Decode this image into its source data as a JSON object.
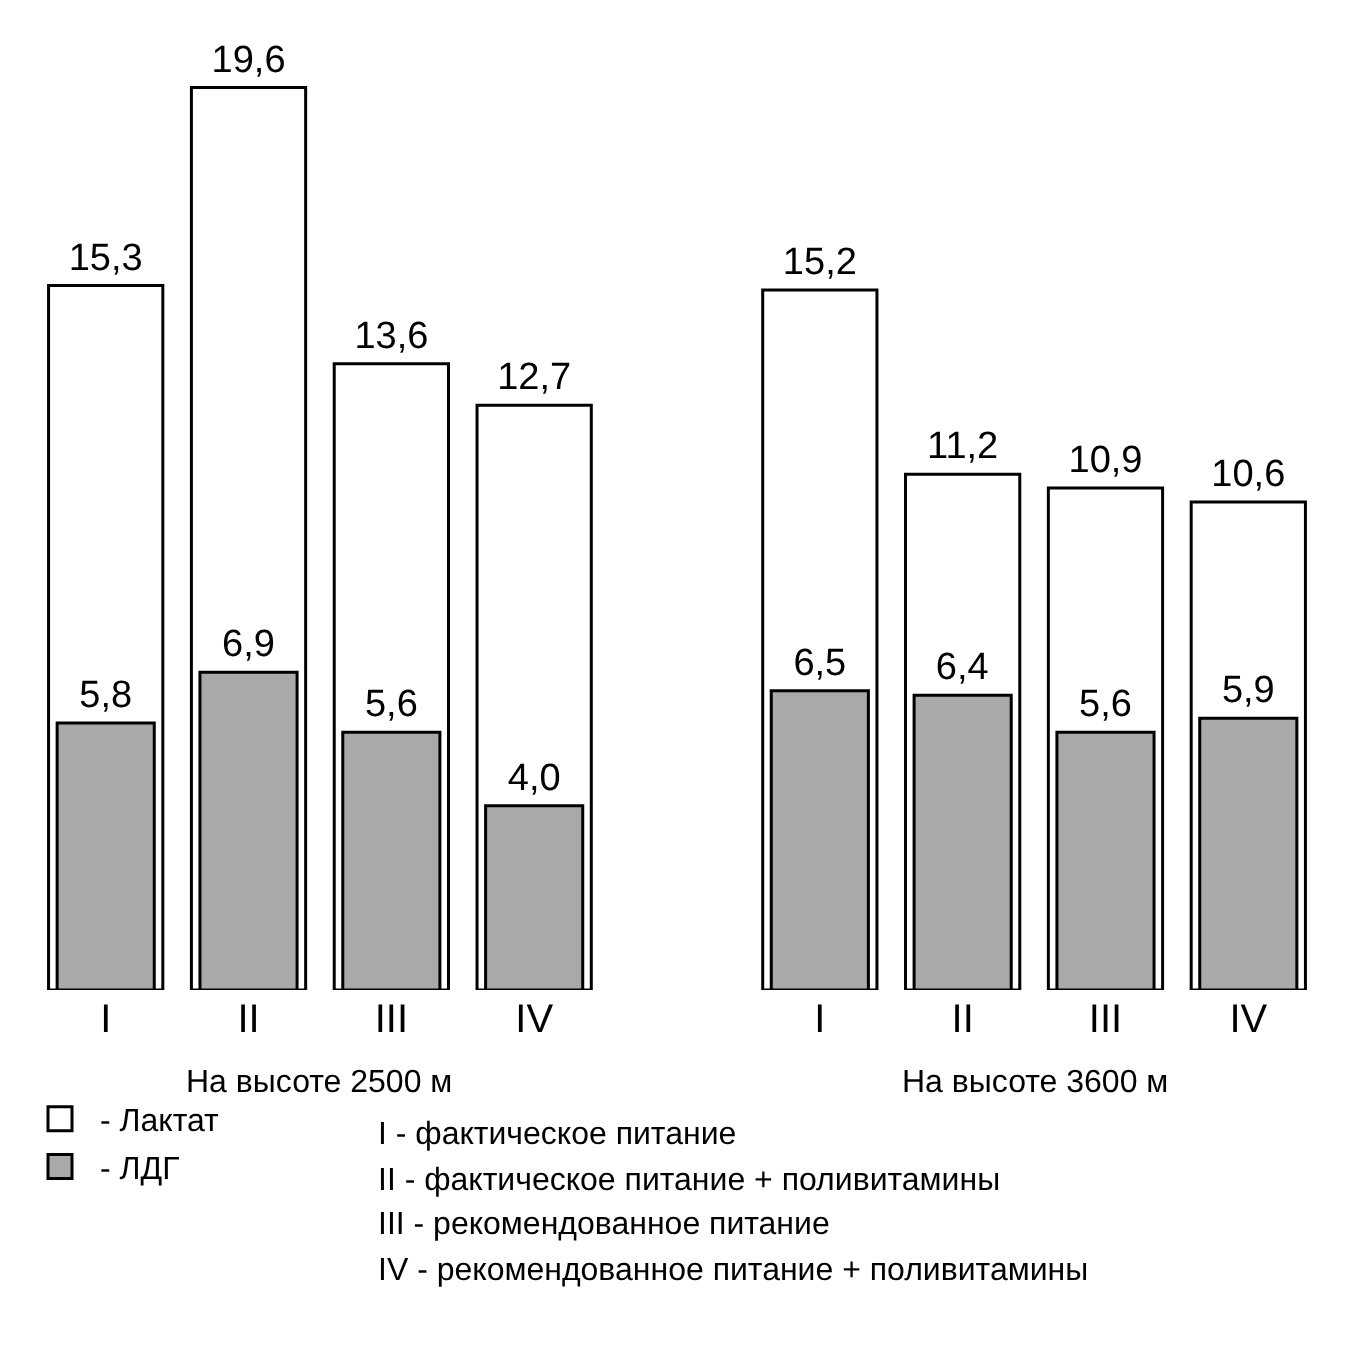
{
  "chart_data": {
    "type": "bar",
    "categories": [
      "I",
      "II",
      "III",
      "IV",
      null,
      "I",
      "II",
      "III",
      "IV"
    ],
    "series": [
      {
        "name": "- Лактат",
        "color": "#ffffff",
        "values": [
          15.3,
          19.6,
          13.6,
          12.7,
          null,
          15.2,
          11.2,
          10.9,
          10.6
        ],
        "value_labels": [
          "15,3",
          "19,6",
          "13,6",
          "12,7",
          null,
          "15,2",
          "11,2",
          "10,9",
          "10,6"
        ]
      },
      {
        "name": "- ЛДГ",
        "color": "#a9a9a9",
        "values": [
          5.8,
          6.9,
          5.6,
          4.0,
          null,
          6.5,
          6.4,
          5.6,
          5.9
        ],
        "value_labels": [
          "5,8",
          "6,9",
          "5,6",
          "4,0",
          null,
          "6,5",
          "6,4",
          "5,6",
          "5,9"
        ]
      }
    ],
    "legend": "bottom left",
    "annotations": [
      "На высоте 2500 м",
      "На высоте 3600 м",
      "I - фактическое питание",
      "II - фактическое питание + поливитамины",
      "III - рекомендованное питание",
      "IV - рекомендованное питание + поливитамины"
    ]
  }
}
